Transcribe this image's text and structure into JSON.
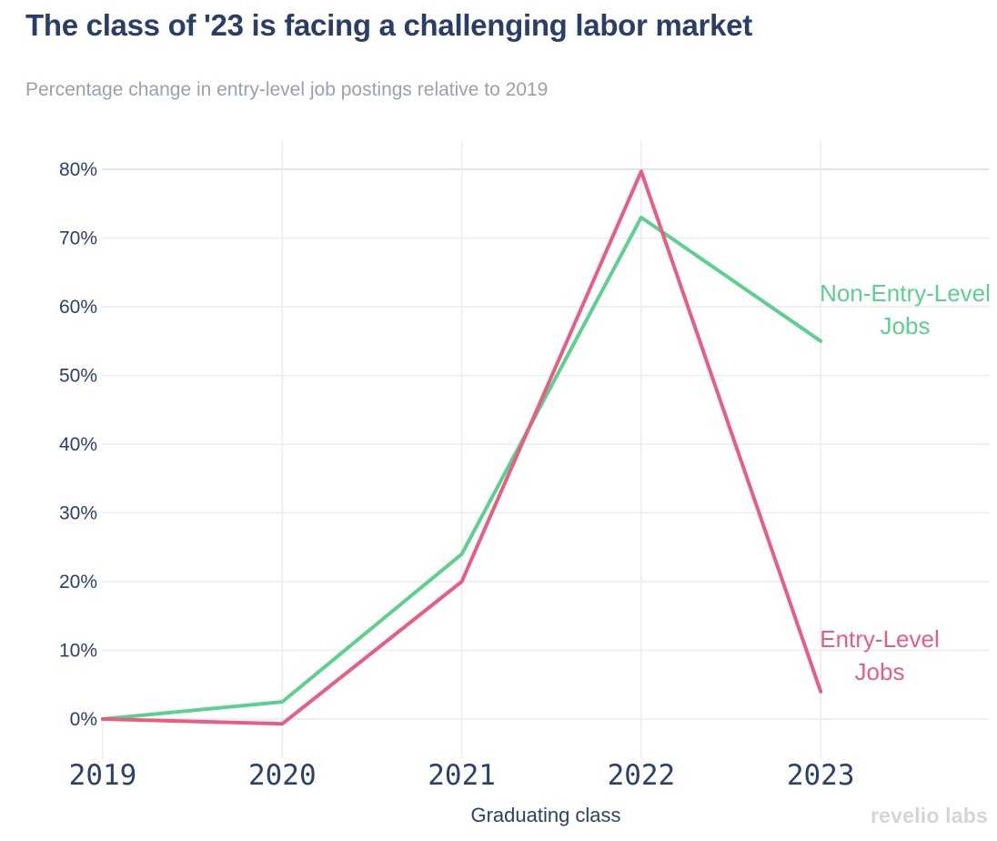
{
  "chart_data": {
    "type": "line",
    "title": "The class of '23 is facing a challenging labor market",
    "subtitle": "Percentage change in entry-level job postings relative to 2019",
    "categories": [
      "2019",
      "2020",
      "2021",
      "2022",
      "2023"
    ],
    "series": [
      {
        "name": "Non-Entry-Level Jobs",
        "color": "#5cd08e",
        "values": [
          0,
          2.5,
          24,
          73,
          55
        ]
      },
      {
        "name": "Entry-Level Jobs",
        "color": "#e75e80",
        "values": [
          0,
          -0.7,
          20,
          79.7,
          4
        ]
      }
    ],
    "xlabel": "Graduating class",
    "ylabel": "",
    "yticks": [
      0,
      10,
      20,
      30,
      40,
      50,
      60,
      70,
      80
    ],
    "ytick_suffix": "%",
    "ylim": [
      -6,
      84
    ],
    "grid": true,
    "legend_position": "inline labels at line ends",
    "annotations": {
      "non_entry": {
        "line1": "Non-Entry-Level",
        "line2": "Jobs"
      },
      "entry": {
        "line1": "Entry-Level",
        "line2": "Jobs"
      }
    }
  },
  "footer": {
    "watermark": "revelio labs"
  },
  "theme": {
    "background": "#ffffff",
    "title_color": "#2b3f66",
    "subtitle_color": "#99a1ae",
    "tick_color": "#2c4168",
    "grid_color": "#eaecf2",
    "grid_major_color": "#dfe3ed",
    "watermark_color": "#d1d5dc"
  }
}
